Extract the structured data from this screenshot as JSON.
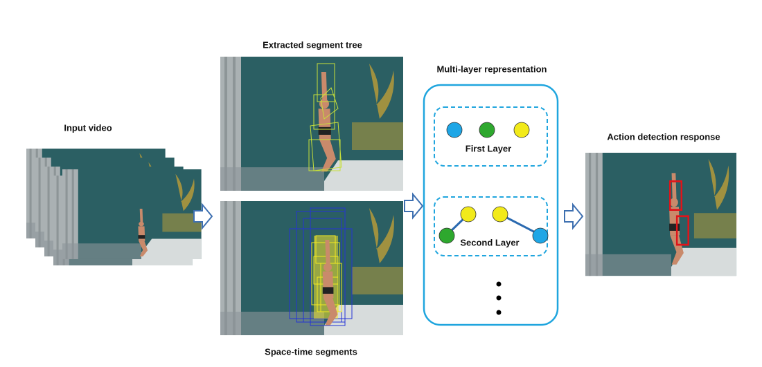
{
  "labels": {
    "input": "Input video",
    "tree": "Extracted segment tree",
    "segments": "Space-time segments",
    "multilayer": "Multi-layer representation",
    "first_layer": "First Layer",
    "second_layer": "Second Layer",
    "response": "Action detection response"
  }
}
